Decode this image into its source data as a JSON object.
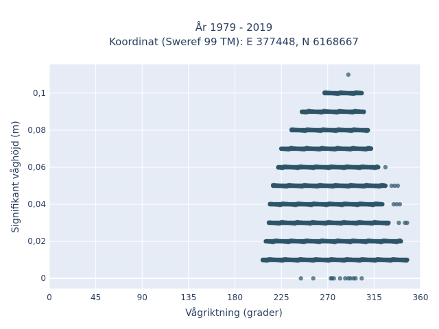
{
  "chart_data": {
    "type": "scatter",
    "title_line1": "År 1979 - 2019",
    "title_line2": "Koordinat (Sweref 99 TM): E 377448, N 6168667",
    "xlabel": "Vågriktning (grader)",
    "ylabel": "Signifikant våghöjd (m)",
    "xlim": [
      0,
      360
    ],
    "ylim": [
      -0.0055,
      0.1155
    ],
    "x_ticks": [
      0,
      45,
      90,
      135,
      180,
      225,
      270,
      315,
      360
    ],
    "y_ticks": [
      0,
      0.02,
      0.04,
      0.06,
      0.08,
      0.1
    ],
    "y_tick_labels": [
      "0",
      "0,02",
      "0,04",
      "0,06",
      "0,08",
      "0,1"
    ],
    "grid": true,
    "colors": {
      "plot_bg": "#e5ecf6",
      "grid": "#ffffff",
      "marker": "#2e5468",
      "text": "#2a3f5f"
    },
    "bands": [
      {
        "y": 0.01,
        "x_min": 207,
        "x_max": 347
      },
      {
        "y": 0.02,
        "x_min": 210,
        "x_max": 341
      },
      {
        "y": 0.03,
        "x_min": 213,
        "x_max": 329,
        "extra_x": [
          339,
          345,
          347
        ]
      },
      {
        "y": 0.04,
        "x_min": 214,
        "x_max": 323,
        "extra_x": [
          334,
          337,
          340
        ]
      },
      {
        "y": 0.05,
        "x_min": 217,
        "x_max": 326,
        "extra_x": [
          332,
          335,
          338
        ]
      },
      {
        "y": 0.06,
        "x_min": 222,
        "x_max": 319,
        "extra_x": [
          326
        ]
      },
      {
        "y": 0.07,
        "x_min": 225,
        "x_max": 312
      },
      {
        "y": 0.08,
        "x_min": 235,
        "x_max": 309
      },
      {
        "y": 0.09,
        "x_min": 245,
        "x_max": 305
      },
      {
        "y": 0.1,
        "x_min": 267,
        "x_max": 303
      }
    ],
    "points": [
      {
        "x": 290,
        "y": 0.11
      },
      {
        "x": 244,
        "y": 0
      },
      {
        "x": 256,
        "y": 0
      },
      {
        "x": 273,
        "y": 0
      },
      {
        "x": 274,
        "y": 0
      },
      {
        "x": 276,
        "y": 0
      },
      {
        "x": 282,
        "y": 0
      },
      {
        "x": 287,
        "y": 0
      },
      {
        "x": 290,
        "y": 0
      },
      {
        "x": 292,
        "y": 0
      },
      {
        "x": 295,
        "y": 0
      },
      {
        "x": 297,
        "y": 0
      },
      {
        "x": 303,
        "y": 0
      }
    ]
  }
}
